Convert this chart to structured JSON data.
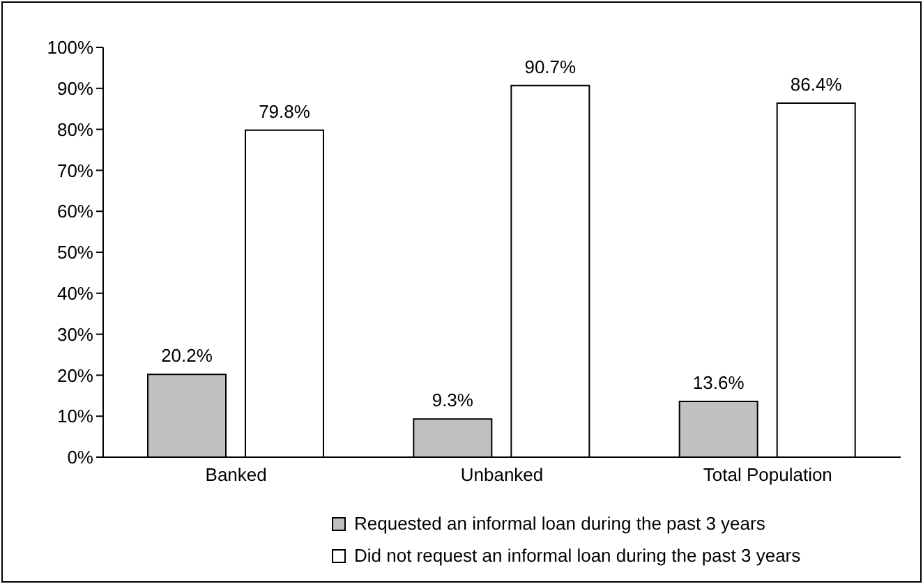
{
  "chart_data": {
    "type": "bar",
    "categories": [
      "Banked",
      "Unbanked",
      "Total Population"
    ],
    "series": [
      {
        "name": "Requested an informal loan during the past 3 years",
        "color": "#c0c0c0",
        "values": [
          20.2,
          9.3,
          13.6
        ],
        "value_labels": [
          "20.2%",
          "9.3%",
          "13.6%"
        ]
      },
      {
        "name": "Did not request an informal loan during the past 3 years",
        "color": "#ffffff",
        "values": [
          79.8,
          90.7,
          86.4
        ],
        "value_labels": [
          "79.8%",
          "90.7%",
          "86.4%"
        ]
      }
    ],
    "ylim": [
      0,
      100
    ],
    "yticks": [
      {
        "value": 0,
        "label": "0%"
      },
      {
        "value": 10,
        "label": "10%"
      },
      {
        "value": 20,
        "label": "20%"
      },
      {
        "value": 30,
        "label": "30%"
      },
      {
        "value": 40,
        "label": "40%"
      },
      {
        "value": 50,
        "label": "50%"
      },
      {
        "value": 60,
        "label": "60%"
      },
      {
        "value": 70,
        "label": "70%"
      },
      {
        "value": 80,
        "label": "80%"
      },
      {
        "value": 90,
        "label": "90%"
      },
      {
        "value": 100,
        "label": "100%"
      }
    ],
    "grid": false,
    "legend": "bottom"
  }
}
